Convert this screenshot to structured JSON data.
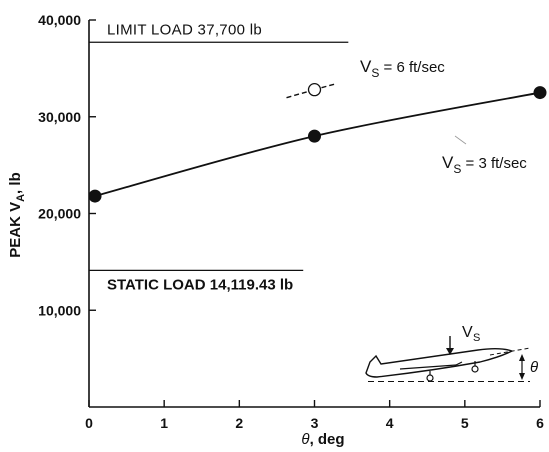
{
  "chart_data": {
    "type": "line",
    "xlabel_main": "θ",
    "xlabel_unit": ", deg",
    "ylabel_main": "PEAK V",
    "ylabel_sub": "A",
    "ylabel_unit": ", lb",
    "xlim": [
      0,
      6
    ],
    "ylim": [
      0,
      40000
    ],
    "x_ticks": [
      0,
      1,
      2,
      3,
      4,
      5,
      6
    ],
    "y_ticks": [
      10000,
      20000,
      30000,
      40000
    ],
    "y_tick_labels": [
      "10,000",
      "20,000",
      "30,000",
      "40,000"
    ],
    "series": [
      {
        "name_main": "V",
        "name_sub": "S",
        "name_rest": " = 3 ft/sec",
        "style": "solid-filled",
        "x": [
          0.08,
          3,
          6
        ],
        "y": [
          21800,
          28000,
          32500
        ]
      },
      {
        "name_main": "V",
        "name_sub": "S",
        "name_rest": " = 6 ft/sec",
        "style": "dashed-open",
        "x": [
          3
        ],
        "y": [
          32800
        ]
      }
    ],
    "reference_lines": [
      {
        "label": "LIMIT LOAD 37,700 lb",
        "y": 37700,
        "x_end": 3.45
      },
      {
        "label": "STATIC LOAD 14,119.43 lb",
        "y": 14119.43,
        "x_end": 2.85
      }
    ],
    "inset": {
      "velocity_main": "V",
      "velocity_sub": "S",
      "angle_symbol": "θ"
    }
  }
}
